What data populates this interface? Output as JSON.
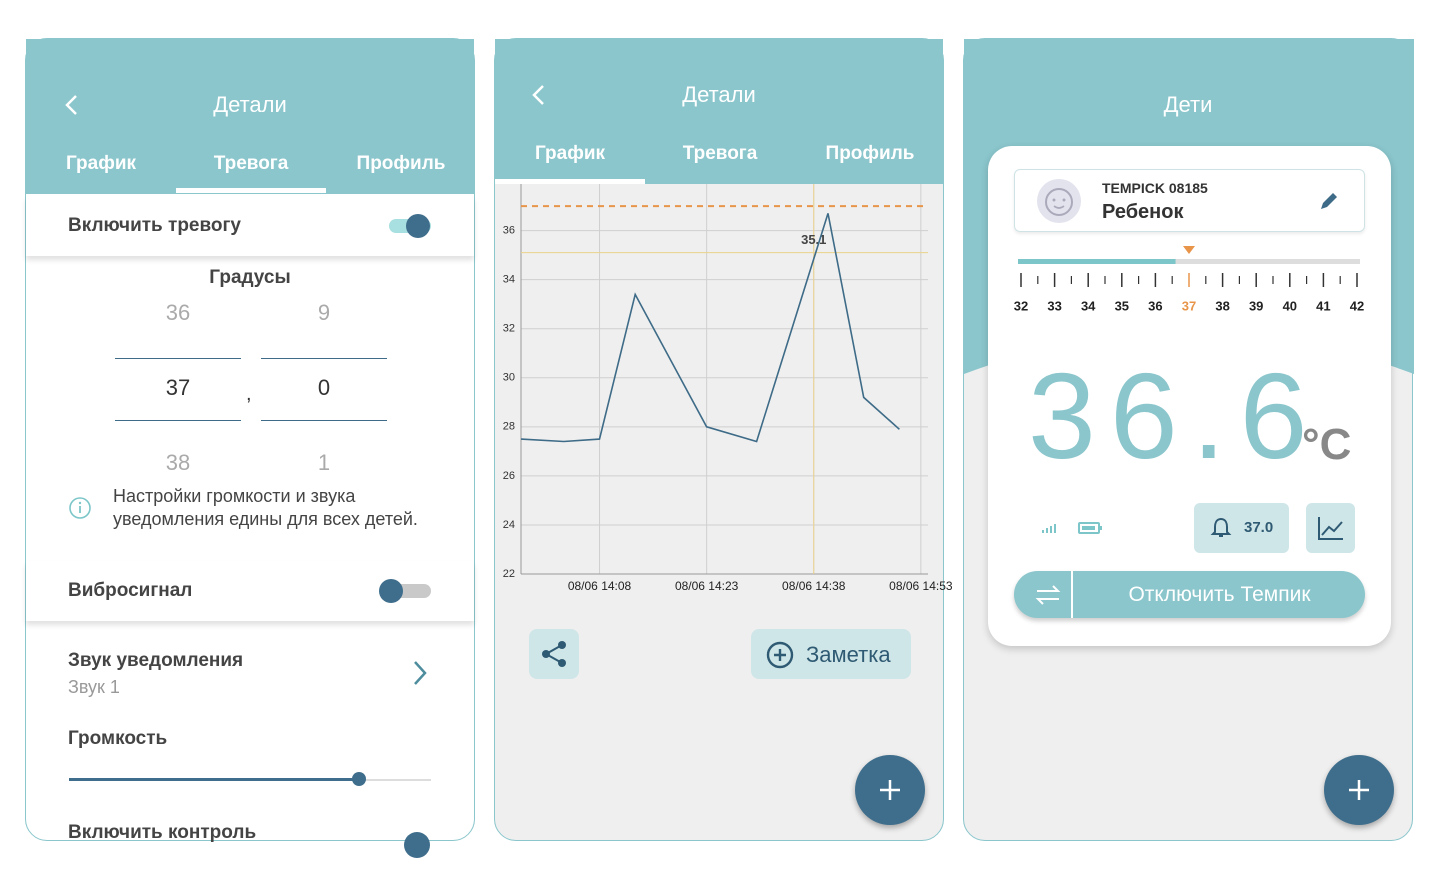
{
  "screens": [
    {
      "title": "Детали",
      "tabs": [
        "График",
        "Тревога",
        "Профиль"
      ],
      "alarm_toggle": "Включить тревогу",
      "degrees_label": "Градусы",
      "picker": {
        "whole": [
          "36",
          "37",
          "38"
        ],
        "separator": ",",
        "fraction": [
          "9",
          "0",
          "1"
        ]
      },
      "info": "Настройки громкости и звука уведомления едины для всех детей.",
      "vibration": "Вибросигнал",
      "sound": {
        "label": "Звук уведомления",
        "value": "Звук 1"
      },
      "volume": "Громкость",
      "control": "Включить контроль"
    },
    {
      "title": "Детали",
      "tabs": [
        "График",
        "Тревога",
        "Профиль"
      ],
      "note_button": "Заметка"
    },
    {
      "title": "Дети",
      "device": {
        "id": "TEMPICK 08185",
        "name": "Ребенок"
      },
      "scale": [
        32,
        33,
        34,
        35,
        36,
        37,
        38,
        39,
        40,
        41,
        42
      ],
      "alarm": {
        "value": 37,
        "label": "37.0"
      },
      "temperature": 36.6,
      "unit": "°C",
      "disconnect": "Отключить Темпик"
    }
  ],
  "chart_data": {
    "type": "line",
    "color": "#3e6b87",
    "x": [
      "08/06 13:57",
      "08/06 14:03",
      "08/06 14:08",
      "08/06 14:13",
      "08/06 14:23",
      "08/06 14:30",
      "08/06 14:40",
      "08/06 14:45",
      "08/06 14:50"
    ],
    "values": [
      27.5,
      27.4,
      27.5,
      33.4,
      28.0,
      27.4,
      36.7,
      29.2,
      27.9
    ],
    "xlim": [
      "08/06 13:57",
      "08/06 14:54"
    ],
    "xticks": [
      "08/06 14:08",
      "08/06 14:23",
      "08/06 14:38",
      "08/06 14:53"
    ],
    "ylim": [
      22,
      37.9
    ],
    "yticks": [
      22,
      24,
      26,
      28,
      30,
      32,
      34,
      36
    ],
    "grid": true,
    "threshold": 37,
    "threshold_color": "#e8954a",
    "crosshair": {
      "x": "08/06 14:38",
      "y": 35.1
    },
    "crosshair_color": "#ecd28a"
  }
}
